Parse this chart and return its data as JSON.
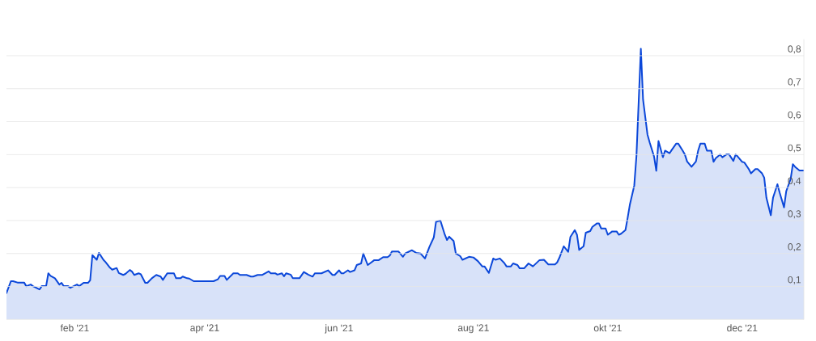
{
  "chart_data": {
    "type": "area",
    "x": [
      "2021-01-01",
      "2021-01-03",
      "2021-01-04",
      "2021-01-06",
      "2021-01-09",
      "2021-01-10",
      "2021-01-12",
      "2021-01-13",
      "2021-01-16",
      "2021-01-17",
      "2021-01-19",
      "2021-01-20",
      "2021-01-21",
      "2021-01-23",
      "2021-01-25",
      "2021-01-26",
      "2021-01-27",
      "2021-01-29",
      "2021-01-30",
      "2021-02-02",
      "2021-02-03",
      "2021-02-05",
      "2021-02-07",
      "2021-02-08",
      "2021-02-09",
      "2021-02-11",
      "2021-02-12",
      "2021-02-14",
      "2021-02-15",
      "2021-02-17",
      "2021-02-18",
      "2021-02-20",
      "2021-02-21",
      "2021-02-23",
      "2021-02-24",
      "2021-02-26",
      "2021-02-27",
      "2021-02-28",
      "2021-03-02",
      "2021-03-03",
      "2021-03-05",
      "2021-03-06",
      "2021-03-08",
      "2021-03-10",
      "2021-03-12",
      "2021-03-13",
      "2021-03-15",
      "2021-03-18",
      "2021-03-19",
      "2021-03-21",
      "2021-03-22",
      "2021-03-24",
      "2021-03-25",
      "2021-03-27",
      "2021-04-05",
      "2021-04-07",
      "2021-04-08",
      "2021-04-10",
      "2021-04-11",
      "2021-04-14",
      "2021-04-16",
      "2021-04-17",
      "2021-04-20",
      "2021-04-22",
      "2021-04-23",
      "2021-04-25",
      "2021-04-27",
      "2021-04-30",
      "2021-05-01",
      "2021-05-03",
      "2021-05-04",
      "2021-05-06",
      "2021-05-07",
      "2021-05-08",
      "2021-05-10",
      "2021-05-11",
      "2021-05-14",
      "2021-05-16",
      "2021-05-18",
      "2021-05-20",
      "2021-05-21",
      "2021-05-24",
      "2021-05-27",
      "2021-05-29",
      "2021-05-30",
      "2021-06-01",
      "2021-06-02",
      "2021-06-03",
      "2021-06-05",
      "2021-06-06",
      "2021-06-08",
      "2021-06-09",
      "2021-06-11",
      "2021-06-12",
      "2021-06-14",
      "2021-06-15",
      "2021-06-17",
      "2021-06-19",
      "2021-06-21",
      "2021-06-23",
      "2021-06-24",
      "2021-06-25",
      "2021-06-28",
      "2021-06-30",
      "2021-07-01",
      "2021-07-04",
      "2021-07-06",
      "2021-07-08",
      "2021-07-10",
      "2021-07-12",
      "2021-07-14",
      "2021-07-15",
      "2021-07-17",
      "2021-07-19",
      "2021-07-20",
      "2021-07-21",
      "2021-07-23",
      "2021-07-24",
      "2021-07-26",
      "2021-07-27",
      "2021-07-30",
      "2021-08-01",
      "2021-08-03",
      "2021-08-05",
      "2021-08-06",
      "2021-08-08",
      "2021-08-09",
      "2021-08-10",
      "2021-08-11",
      "2021-08-13",
      "2021-08-15",
      "2021-08-16",
      "2021-08-18",
      "2021-08-19",
      "2021-08-21",
      "2021-08-22",
      "2021-08-24",
      "2021-08-26",
      "2021-08-28",
      "2021-08-31",
      "2021-09-02",
      "2021-09-04",
      "2021-09-07",
      "2021-09-08",
      "2021-09-09",
      "2021-09-11",
      "2021-09-13",
      "2021-09-14",
      "2021-09-16",
      "2021-09-17",
      "2021-09-18",
      "2021-09-20",
      "2021-09-21",
      "2021-09-23",
      "2021-09-24",
      "2021-09-26",
      "2021-09-27",
      "2021-09-28",
      "2021-09-30",
      "2021-10-01",
      "2021-10-03",
      "2021-10-05",
      "2021-10-06",
      "2021-10-07",
      "2021-10-09",
      "2021-10-10",
      "2021-10-11",
      "2021-10-13",
      "2021-10-14",
      "2021-10-16",
      "2021-10-17",
      "2021-10-19",
      "2021-10-20",
      "2021-10-22",
      "2021-10-23",
      "2021-10-24",
      "2021-10-26",
      "2021-10-27",
      "2021-10-29",
      "2021-10-30",
      "2021-11-01",
      "2021-11-02",
      "2021-11-04",
      "2021-11-05",
      "2021-11-06",
      "2021-11-08",
      "2021-11-10",
      "2021-11-11",
      "2021-11-12",
      "2021-11-14",
      "2021-11-15",
      "2021-11-17",
      "2021-11-18",
      "2021-11-19",
      "2021-11-21",
      "2021-11-22",
      "2021-11-24",
      "2021-11-25",
      "2021-11-27",
      "2021-11-28",
      "2021-11-29",
      "2021-12-01",
      "2021-12-02",
      "2021-12-04",
      "2021-12-05",
      "2021-12-07",
      "2021-12-08",
      "2021-12-10",
      "2021-12-11",
      "2021-12-12",
      "2021-12-14",
      "2021-12-15",
      "2021-12-17",
      "2021-12-18",
      "2021-12-20",
      "2021-12-21",
      "2021-12-23",
      "2021-12-24",
      "2021-12-25",
      "2021-12-27",
      "2021-12-29"
    ],
    "series": [
      {
        "color": "#0b47d9",
        "values": [
          0.08,
          0.116,
          0.116,
          0.112,
          0.112,
          0.101,
          0.106,
          0.101,
          0.091,
          0.101,
          0.101,
          0.14,
          0.132,
          0.125,
          0.106,
          0.111,
          0.101,
          0.101,
          0.096,
          0.106,
          0.101,
          0.111,
          0.111,
          0.119,
          0.195,
          0.181,
          0.202,
          0.181,
          0.174,
          0.157,
          0.151,
          0.156,
          0.141,
          0.135,
          0.138,
          0.15,
          0.145,
          0.135,
          0.14,
          0.137,
          0.111,
          0.111,
          0.125,
          0.135,
          0.13,
          0.12,
          0.14,
          0.14,
          0.125,
          0.125,
          0.13,
          0.125,
          0.124,
          0.116,
          0.116,
          0.122,
          0.132,
          0.132,
          0.12,
          0.14,
          0.14,
          0.135,
          0.135,
          0.13,
          0.13,
          0.135,
          0.135,
          0.146,
          0.14,
          0.14,
          0.136,
          0.14,
          0.131,
          0.14,
          0.136,
          0.125,
          0.125,
          0.144,
          0.136,
          0.13,
          0.14,
          0.14,
          0.149,
          0.135,
          0.135,
          0.149,
          0.14,
          0.14,
          0.149,
          0.144,
          0.149,
          0.165,
          0.17,
          0.2,
          0.165,
          0.17,
          0.18,
          0.18,
          0.189,
          0.189,
          0.194,
          0.206,
          0.206,
          0.19,
          0.2,
          0.21,
          0.202,
          0.2,
          0.185,
          0.22,
          0.249,
          0.296,
          0.3,
          0.257,
          0.241,
          0.251,
          0.238,
          0.2,
          0.192,
          0.181,
          0.19,
          0.188,
          0.177,
          0.161,
          0.161,
          0.141,
          0.163,
          0.185,
          0.181,
          0.185,
          0.171,
          0.161,
          0.161,
          0.17,
          0.165,
          0.155,
          0.155,
          0.17,
          0.161,
          0.18,
          0.181,
          0.167,
          0.167,
          0.173,
          0.187,
          0.222,
          0.205,
          0.25,
          0.271,
          0.257,
          0.211,
          0.222,
          0.263,
          0.268,
          0.281,
          0.291,
          0.291,
          0.276,
          0.276,
          0.257,
          0.267,
          0.267,
          0.257,
          0.26,
          0.271,
          0.308,
          0.348,
          0.406,
          0.496,
          0.821,
          0.667,
          0.561,
          0.537,
          0.494,
          0.451,
          0.541,
          0.492,
          0.512,
          0.504,
          0.514,
          0.533,
          0.533,
          0.512,
          0.5,
          0.479,
          0.463,
          0.479,
          0.512,
          0.533,
          0.533,
          0.512,
          0.512,
          0.478,
          0.489,
          0.5,
          0.492,
          0.501,
          0.501,
          0.481,
          0.5,
          0.494,
          0.478,
          0.476,
          0.456,
          0.443,
          0.456,
          0.456,
          0.443,
          0.43,
          0.369,
          0.316,
          0.369,
          0.41,
          0.385,
          0.34,
          0.389,
          0.426,
          0.471,
          0.463,
          0.452,
          0.452
        ]
      }
    ],
    "xlim": [
      "2021-01-01",
      "2021-12-29"
    ],
    "ylim": [
      0,
      0.85
    ],
    "xticks": [
      {
        "value": "2021-02-01",
        "label": "feb '21"
      },
      {
        "value": "2021-04-01",
        "label": "apr '21"
      },
      {
        "value": "2021-06-01",
        "label": "jun '21"
      },
      {
        "value": "2021-08-01",
        "label": "aug '21"
      },
      {
        "value": "2021-10-01",
        "label": "okt '21"
      },
      {
        "value": "2021-12-01",
        "label": "dec '21"
      }
    ],
    "yticks": [
      {
        "value": 0,
        "label": null
      },
      {
        "value": 0.1,
        "label": "0,1"
      },
      {
        "value": 0.2,
        "label": "0,2"
      },
      {
        "value": 0.3,
        "label": "0,3"
      },
      {
        "value": 0.4,
        "label": "0,4"
      },
      {
        "value": 0.5,
        "label": "0,5"
      },
      {
        "value": 0.6,
        "label": "0,6"
      },
      {
        "value": 0.7,
        "label": "0,7"
      },
      {
        "value": 0.8,
        "label": "0,8"
      }
    ],
    "grid": "y"
  }
}
